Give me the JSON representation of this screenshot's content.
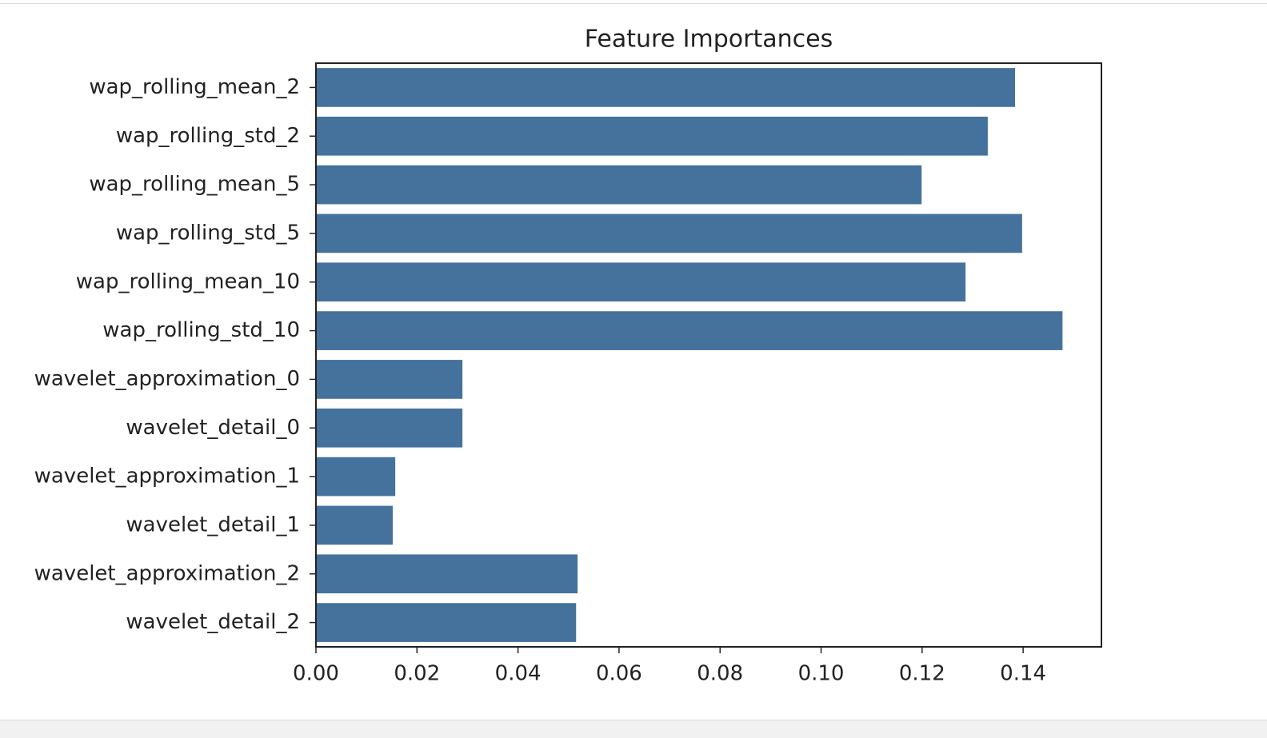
{
  "chart_data": {
    "type": "bar",
    "orientation": "horizontal",
    "title": "Feature Importances",
    "categories": [
      "wap_rolling_mean_2",
      "wap_rolling_std_2",
      "wap_rolling_mean_5",
      "wap_rolling_std_5",
      "wap_rolling_mean_10",
      "wap_rolling_std_10",
      "wavelet_approximation_0",
      "wavelet_detail_0",
      "wavelet_approximation_1",
      "wavelet_detail_1",
      "wavelet_approximation_2",
      "wavelet_detail_2"
    ],
    "values": [
      0.1384,
      0.133,
      0.1199,
      0.1398,
      0.1286,
      0.1478,
      0.029,
      0.029,
      0.0157,
      0.0152,
      0.0518,
      0.0515
    ],
    "color": "#44729c",
    "xlim": [
      0,
      0.1555
    ],
    "xticks": [
      {
        "value": 0,
        "label": "0.00"
      },
      {
        "value": 0.02,
        "label": "0.02"
      },
      {
        "value": 0.04,
        "label": "0.04"
      },
      {
        "value": 0.06,
        "label": "0.06"
      },
      {
        "value": 0.08,
        "label": "0.08"
      },
      {
        "value": 0.1,
        "label": "0.10"
      },
      {
        "value": 0.12,
        "label": "0.12"
      },
      {
        "value": 0.14,
        "label": "0.14"
      }
    ],
    "grid": false
  }
}
